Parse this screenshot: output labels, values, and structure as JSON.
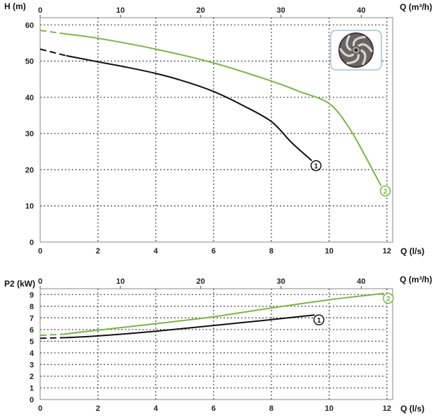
{
  "chart_data": [
    {
      "type": "line",
      "ylabel": "H (m)",
      "xlabel": "Q (l/s)",
      "x2label": "Q (m³/h)",
      "xlim": [
        0,
        12.2
      ],
      "ylim": [
        0,
        62
      ],
      "x_ticks": [
        "0",
        "2",
        "4",
        "6",
        "8",
        "10",
        "12"
      ],
      "x2_ticks": [
        "0",
        "10",
        "20",
        "30",
        "40"
      ],
      "y_ticks": [
        "0",
        "10",
        "20",
        "30",
        "40",
        "50",
        "60"
      ],
      "grid": true,
      "series": [
        {
          "name": "1",
          "color": "#111111",
          "points": [
            [
              0,
              53.3
            ],
            [
              0.9,
              51.5
            ],
            [
              2,
              49.8
            ],
            [
              3,
              48.3
            ],
            [
              4,
              46.6
            ],
            [
              5,
              44.4
            ],
            [
              6,
              41.6
            ],
            [
              7,
              37.8
            ],
            [
              8,
              33.3
            ],
            [
              8.7,
              27.5
            ],
            [
              9.4,
              22.5
            ]
          ]
        },
        {
          "name": "2",
          "color": "#7ab648",
          "points": [
            [
              0,
              58.5
            ],
            [
              0.8,
              57.6
            ],
            [
              2,
              56.3
            ],
            [
              4,
              53.3
            ],
            [
              6,
              49.5
            ],
            [
              8,
              44.5
            ],
            [
              9,
              41.5
            ],
            [
              10,
              38.3
            ],
            [
              10.7,
              31.5
            ],
            [
              11.3,
              23
            ],
            [
              11.8,
              15.5
            ]
          ]
        }
      ]
    },
    {
      "type": "line",
      "ylabel": "P2 (kW)",
      "xlabel": "Q (l/s)",
      "x2label": "Q (m³/h)",
      "xlim": [
        0,
        12.2
      ],
      "ylim": [
        0,
        9.5
      ],
      "x_ticks": [
        "0",
        "2",
        "4",
        "6",
        "8",
        "10",
        "12"
      ],
      "x2_ticks": [
        "0",
        "10",
        "20",
        "30",
        "40"
      ],
      "y_ticks": [
        "0",
        "1",
        "2",
        "3",
        "4",
        "5",
        "6",
        "7",
        "8",
        "9"
      ],
      "grid": true,
      "series": [
        {
          "name": "1",
          "color": "#111111",
          "points": [
            [
              0,
              5.25
            ],
            [
              0.8,
              5.3
            ],
            [
              2,
              5.45
            ],
            [
              4,
              5.85
            ],
            [
              6,
              6.35
            ],
            [
              8,
              6.85
            ],
            [
              9.5,
              7.25
            ]
          ]
        },
        {
          "name": "2",
          "color": "#7ab648",
          "points": [
            [
              0,
              5.5
            ],
            [
              0.8,
              5.6
            ],
            [
              2,
              5.95
            ],
            [
              4,
              6.5
            ],
            [
              6,
              7.1
            ],
            [
              8,
              7.85
            ],
            [
              10,
              8.55
            ],
            [
              11.9,
              9.1
            ]
          ]
        }
      ]
    }
  ],
  "inset": {
    "icon": "impeller-icon",
    "frame_color": "#9ab3d5"
  }
}
